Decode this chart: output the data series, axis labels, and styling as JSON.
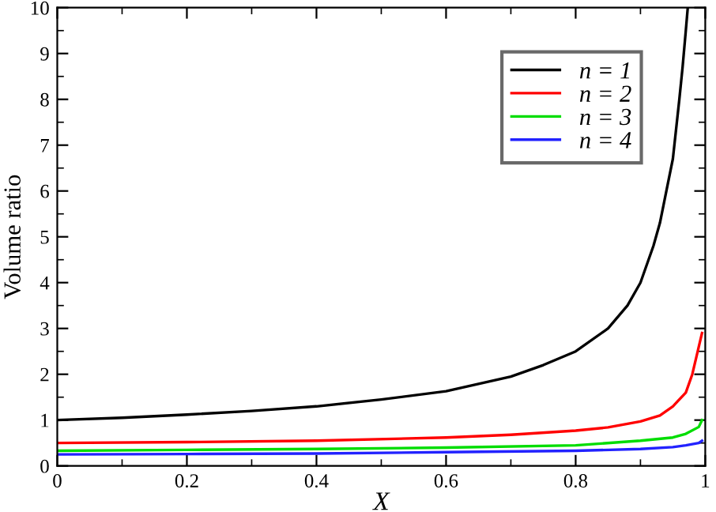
{
  "chart_data": {
    "type": "line",
    "xlabel": "X",
    "ylabel": "Volume ratio",
    "xlim": [
      0,
      1
    ],
    "ylim": [
      0,
      10
    ],
    "xticks": [
      0,
      0.2,
      0.4,
      0.6,
      0.8,
      1
    ],
    "yticks": [
      0,
      1,
      2,
      3,
      4,
      5,
      6,
      7,
      8,
      9,
      10
    ],
    "grid": false,
    "legend": "top right",
    "marker": "none",
    "line_style": "solid",
    "series": [
      {
        "name": "n = 1",
        "color": "#000000",
        "x": [
          0,
          0.1,
          0.2,
          0.3,
          0.4,
          0.5,
          0.6,
          0.7,
          0.75,
          0.8,
          0.85,
          0.88,
          0.9,
          0.92,
          0.93,
          0.94,
          0.95,
          0.96,
          0.965,
          0.97,
          0.973
        ],
        "values": [
          1.0,
          1.05,
          1.12,
          1.2,
          1.3,
          1.45,
          1.63,
          1.95,
          2.2,
          2.5,
          3.0,
          3.5,
          4.0,
          4.8,
          5.3,
          6.0,
          6.7,
          8.0,
          8.7,
          9.5,
          10
        ]
      },
      {
        "name": "n = 2",
        "color": "#ff0000",
        "x": [
          0,
          0.2,
          0.4,
          0.6,
          0.7,
          0.8,
          0.85,
          0.9,
          0.93,
          0.95,
          0.97,
          0.98,
          0.99,
          0.995
        ],
        "values": [
          0.5,
          0.52,
          0.55,
          0.62,
          0.68,
          0.77,
          0.84,
          0.97,
          1.1,
          1.3,
          1.6,
          2.0,
          2.6,
          2.9
        ]
      },
      {
        "name": "n = 3",
        "color": "#00dd00",
        "x": [
          0,
          0.2,
          0.4,
          0.6,
          0.8,
          0.9,
          0.95,
          0.97,
          0.99,
          0.995
        ],
        "values": [
          0.33,
          0.35,
          0.37,
          0.4,
          0.45,
          0.55,
          0.62,
          0.7,
          0.85,
          1.0
        ]
      },
      {
        "name": "n = 4",
        "color": "#2222ff",
        "x": [
          0,
          0.2,
          0.4,
          0.6,
          0.8,
          0.9,
          0.95,
          0.97,
          0.99,
          0.995
        ],
        "values": [
          0.25,
          0.26,
          0.27,
          0.3,
          0.33,
          0.37,
          0.41,
          0.45,
          0.5,
          0.55
        ]
      }
    ]
  }
}
